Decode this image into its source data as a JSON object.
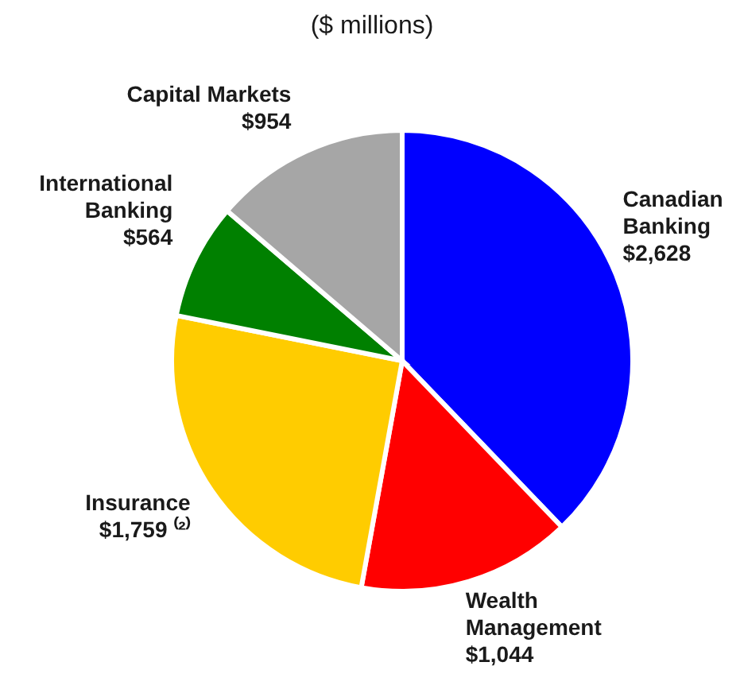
{
  "chart_data": {
    "type": "pie",
    "title": "($ millions)",
    "categories": [
      "Canadian Banking",
      "Wealth Management",
      "Insurance",
      "International Banking",
      "Capital Markets"
    ],
    "values": [
      2628,
      1044,
      1759,
      564,
      954
    ],
    "colors": [
      "#0000ff",
      "#ff0000",
      "#ffcc00",
      "#008000",
      "#a6a6a6"
    ],
    "value_labels": [
      "$2,628",
      "$1,044",
      "$1,759 ⁽²⁾",
      "$564",
      "$954"
    ]
  }
}
